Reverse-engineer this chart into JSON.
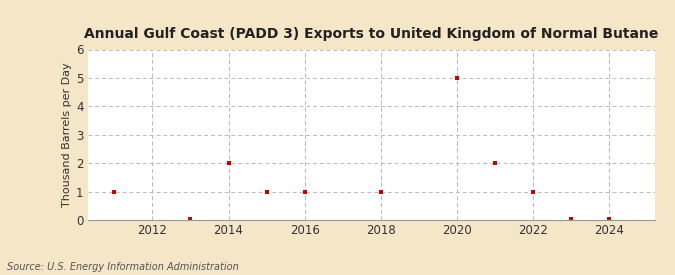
{
  "title": "Annual Gulf Coast (PADD 3) Exports to United Kingdom of Normal Butane",
  "ylabel": "Thousand Barrels per Day",
  "source": "Source: U.S. Energy Information Administration",
  "outer_bg": "#f5e6c8",
  "inner_bg": "#ffffff",
  "data_color": "#cc0000",
  "grid_color": "#bbbbbb",
  "xlim": [
    2010.3,
    2025.2
  ],
  "ylim": [
    0,
    6
  ],
  "yticks": [
    0,
    1,
    2,
    3,
    4,
    5,
    6
  ],
  "xticks": [
    2012,
    2014,
    2016,
    2018,
    2020,
    2022,
    2024
  ],
  "years": [
    2011,
    2013,
    2014,
    2015,
    2016,
    2018,
    2020,
    2021,
    2022,
    2023,
    2024
  ],
  "values": [
    1.0,
    0.03,
    2.0,
    1.0,
    1.0,
    1.0,
    5.0,
    2.0,
    1.0,
    0.03,
    0.03
  ]
}
